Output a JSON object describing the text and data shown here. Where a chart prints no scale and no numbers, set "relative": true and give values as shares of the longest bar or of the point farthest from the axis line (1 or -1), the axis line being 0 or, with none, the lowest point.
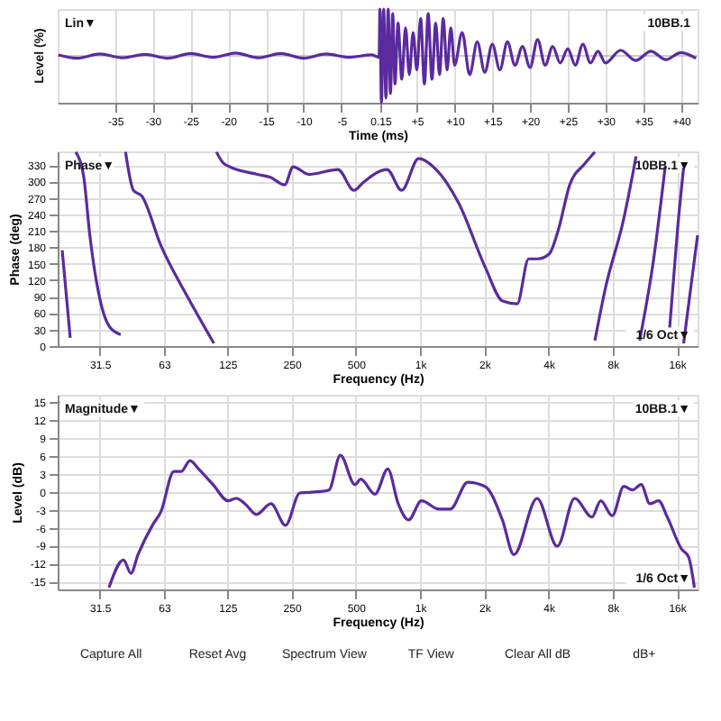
{
  "chart_data": [
    {
      "type": "line",
      "relative": true,
      "xlabel": "Time (ms)",
      "ylabel": "Level (%)",
      "grid": true,
      "xlim": [
        -42.6,
        42.2
      ],
      "xticks": [
        -35,
        -30,
        -25,
        -20,
        -15,
        -10,
        -5,
        0.15,
        {
          "value": 5,
          "label": "+5"
        },
        {
          "value": 10,
          "label": "+10"
        },
        {
          "value": 15,
          "label": "+15"
        },
        {
          "value": 20,
          "label": "+20"
        },
        {
          "value": 25,
          "label": "+25"
        },
        {
          "value": 30,
          "label": "+30"
        },
        {
          "value": 35,
          "label": "+35"
        },
        {
          "value": 40,
          "label": "+40"
        }
      ],
      "annotations": [
        "Lin▼",
        "10BB.1"
      ],
      "series": [
        {
          "color": "#5b2a9e",
          "x": [
            -42.5,
            -40,
            -37,
            -34,
            -31,
            -28,
            -25,
            -22,
            -19,
            -16,
            -13,
            -10,
            -7,
            -4,
            -1,
            0,
            0.1,
            0.3,
            0.6,
            0.9,
            1.2,
            1.5,
            1.8,
            2.1,
            2.5,
            3,
            3.5,
            4,
            4.5,
            5,
            5.5,
            6,
            6.5,
            7,
            7.5,
            8,
            8.5,
            9,
            9.5,
            10,
            11,
            12,
            13,
            14,
            15,
            16,
            17,
            18,
            19,
            20,
            21,
            22,
            23,
            24,
            25,
            26,
            27,
            28,
            29,
            30,
            32,
            34,
            36,
            38,
            40,
            42
          ],
          "values": [
            0.02,
            -0.05,
            0.04,
            -0.04,
            0.03,
            -0.05,
            0.05,
            -0.03,
            0.06,
            -0.04,
            0.05,
            -0.05,
            0.04,
            -0.03,
            0.02,
            -0.03,
            1,
            -1,
            1,
            -0.9,
            1,
            -0.8,
            0.9,
            -0.6,
            0.7,
            -0.5,
            0.6,
            -0.4,
            0.5,
            -0.3,
            0.8,
            -0.6,
            0.9,
            -0.5,
            0.7,
            -0.4,
            0.8,
            -0.3,
            0.6,
            -0.2,
            0.5,
            -0.4,
            0.3,
            -0.35,
            0.25,
            -0.3,
            0.3,
            -0.2,
            0.2,
            -0.25,
            0.35,
            -0.2,
            0.2,
            -0.15,
            0.15,
            -0.2,
            0.25,
            -0.15,
            0.1,
            -0.15,
            0.12,
            -0.1,
            0.1,
            -0.08,
            0.07,
            -0.05
          ]
        }
      ]
    },
    {
      "type": "line",
      "xlabel": "Frequency (Hz)",
      "ylabel": "Phase (deg)",
      "grid": true,
      "log": "x",
      "xlim": [
        20,
        20000
      ],
      "ylim": [
        0,
        355
      ],
      "xticks": [
        31.5,
        63,
        125,
        250,
        500,
        {
          "value": 1000,
          "label": "1k"
        },
        {
          "value": 2000,
          "label": "2k"
        },
        {
          "value": 4000,
          "label": "4k"
        },
        {
          "value": 8000,
          "label": "8k"
        },
        {
          "value": 16000,
          "label": "16k"
        }
      ],
      "yticks": [
        0,
        30,
        60,
        90,
        120,
        150,
        180,
        210,
        240,
        270,
        300,
        330
      ],
      "annotations": [
        "Phase▼",
        "10BB.1▼",
        "1/6 Oct▼"
      ],
      "series": [
        {
          "color": "#5b2a9e",
          "x": [
            21.0,
            22.9,
            null,
            24.3,
            26.5,
            28.3,
            31.5,
            35.2,
            39.5,
            null,
            41.6,
            45.3,
            49.5,
            61,
            82,
            108,
            null,
            111,
            121,
            173,
            198,
            232,
            254,
            302,
            412,
            490,
            540,
            700,
            820,
            985,
            1190,
            1520,
            2020,
            2440,
            2850,
            3230,
            3560,
            4030,
            4450,
            5030,
            5900,
            6600,
            null,
            6600,
            7400,
            9000,
            10300,
            null,
            10700,
            12400,
            14100,
            null,
            14800,
            16100,
            17200,
            null,
            17200,
            20000
          ],
          "values": [
            175,
            15,
            null,
            354,
            308,
            202,
            87,
            34,
            21,
            null,
            354,
            284,
            274,
            183,
            87,
            5,
            null,
            354,
            332,
            313,
            308,
            294,
            327,
            313,
            322,
            284,
            298,
            322,
            284,
            342,
            322,
            260,
            144,
            82,
            77,
            159,
            159,
            168,
            212,
            294,
            332,
            354,
            null,
            10,
            106,
            231,
            346,
            null,
            10,
            154,
            327,
            null,
            34,
            212,
            325,
            null,
            5,
            202
          ]
        }
      ]
    },
    {
      "type": "line",
      "xlabel": "Frequency (Hz)",
      "ylabel": "Level (dB)",
      "grid": true,
      "log": "x",
      "xlim": [
        20,
        20000
      ],
      "ylim": [
        -16.3,
        16.2
      ],
      "xticks": [
        31.5,
        63,
        125,
        250,
        500,
        {
          "value": 1000,
          "label": "1k"
        },
        {
          "value": 2000,
          "label": "2k"
        },
        {
          "value": 4000,
          "label": "4k"
        },
        {
          "value": 8000,
          "label": "8k"
        },
        {
          "value": 16000,
          "label": "16k"
        }
      ],
      "yticks": [
        15,
        12,
        9,
        6,
        3,
        0,
        -3,
        -6,
        -9,
        -12,
        -15
      ],
      "annotations": [
        "Magnitude▼",
        "10BB.1▼",
        "1/6 Oct▼",
        "Capture All",
        "Reset Avg",
        "Spectrum View",
        "TF View",
        "Clear All dB",
        "dB+"
      ],
      "series": [
        {
          "color": "#5b2a9e",
          "x": [
            34.8,
            40.7,
            44.1,
            47.6,
            55.6,
            61,
            70.1,
            76,
            83.4,
            91.6,
            107,
            126,
            137.5,
            151,
            171,
            200,
            234,
            273,
            330,
            374,
            423,
            495,
            527,
            615,
            706,
            790,
            884,
            1015,
            1225,
            1386,
            1672,
            2016,
            2432,
            2754,
            3536,
            4400,
            5305,
            6400,
            7030,
            7965,
            9020,
            9910,
            10880,
            11950,
            13130,
            14410,
            16850,
            18160,
            19330
          ],
          "values": [
            -16.0,
            -11.4,
            -13.6,
            -10.5,
            -5.6,
            -3.3,
            3.4,
            3.4,
            5.2,
            3.8,
            1.2,
            -1.5,
            -1.1,
            -2.0,
            -3.8,
            -2.0,
            -5.6,
            -0.2,
            0,
            0.3,
            6.1,
            1.2,
            2.1,
            -0.4,
            3.8,
            -2.0,
            -4.7,
            -1.5,
            -2.9,
            -2.9,
            1.6,
            0.9,
            -4.7,
            -10.5,
            -1.1,
            -9.1,
            -1.1,
            -4.2,
            -1.5,
            -4.0,
            0.9,
            0.3,
            1.2,
            -2.0,
            -1.5,
            -4.2,
            -9.6,
            -10.9,
            -16.0
          ]
        }
      ]
    }
  ]
}
